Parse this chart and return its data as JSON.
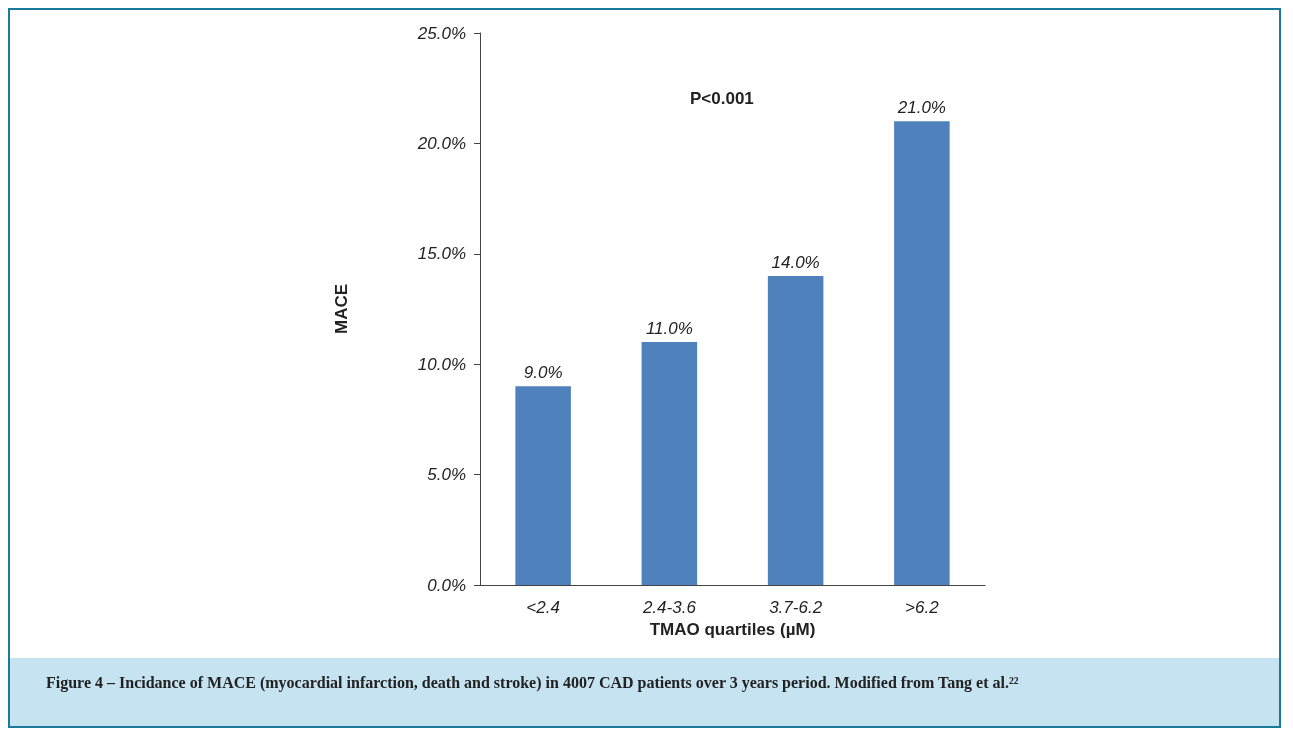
{
  "chart_data": {
    "type": "bar",
    "xlabel": "TMAO quartiles (µM)",
    "ylabel": "MACE",
    "categories": [
      "<2.4",
      "2.4-3.6",
      "3.7-6.2",
      ">6.2"
    ],
    "values": [
      9,
      11,
      14,
      21
    ],
    "value_labels": [
      "9.0%",
      "11.0%",
      "14.0%",
      "21.0%"
    ],
    "color": "#4f81bd",
    "ylim": [
      0,
      25
    ],
    "yticks": [
      {
        "value": 0,
        "label": "0.0%"
      },
      {
        "value": 5,
        "label": "5.0%"
      },
      {
        "value": 10,
        "label": "10.0%"
      },
      {
        "value": 15,
        "label": "15.0%"
      },
      {
        "value": 20,
        "label": "20.0%"
      },
      {
        "value": 25,
        "label": "25.0%"
      }
    ],
    "grid": false,
    "annotations": [
      "P<0.001",
      "Figure 4 – Incidance of MACE (myocardial infarction, death and stroke) in 4007 CAD patients over 3 years period. Modified from Tang et al.²²"
    ]
  }
}
